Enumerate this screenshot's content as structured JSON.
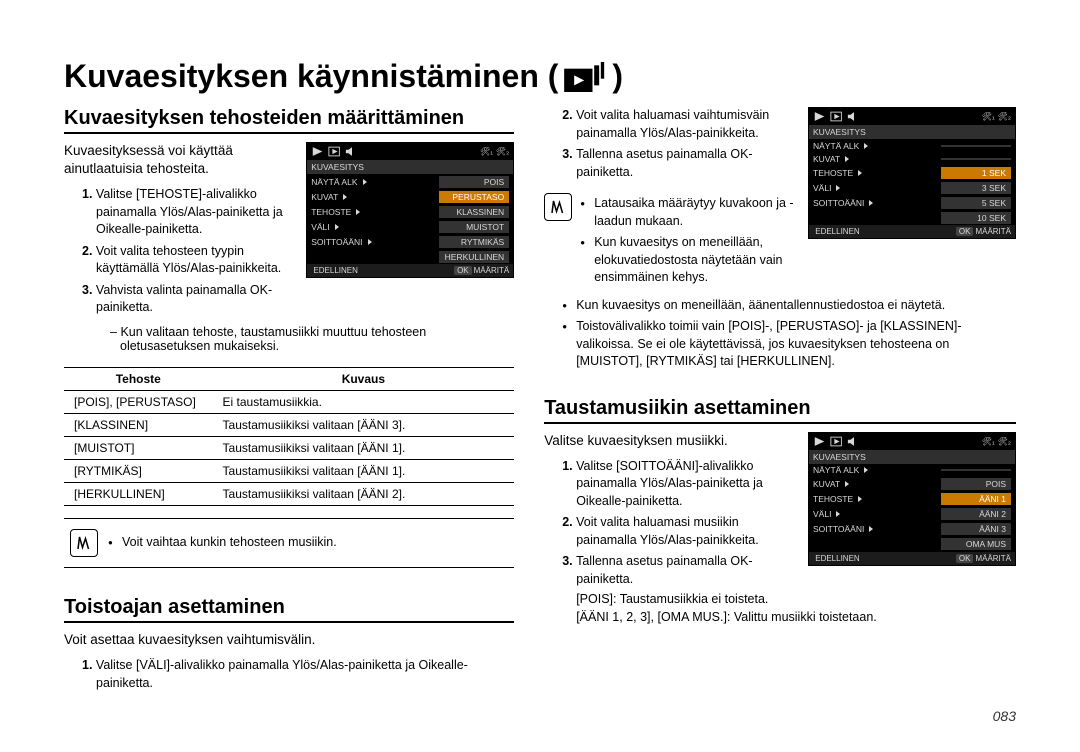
{
  "page_title": "Kuvaesityksen käynnistäminen (",
  "page_title_suffix": ")",
  "page_number": "083",
  "left": {
    "section1_title": "Kuvaesityksen tehosteiden määrittäminen",
    "section1_intro": "Kuvaesityksessä voi käyttää ainutlaatuisia tehosteita.",
    "section1_steps": [
      "Valitse [TEHOSTE]-alivalikko painamalla Ylös/Alas-painiketta ja Oikealle-painiketta.",
      "Voit valita tehosteen tyypin käyttämällä Ylös/Alas-painikkeita.",
      "Vahvista valinta painamalla OK-painiketta."
    ],
    "section1_dash": "Kun valitaan tehoste, taustamusiikki muuttuu tehosteen oletusasetuksen mukaiseksi.",
    "eff_table": {
      "head": [
        "Tehoste",
        "Kuvaus"
      ],
      "rows": [
        [
          "[POIS], [PERUSTASO]",
          "Ei taustamusiikkia."
        ],
        [
          "[KLASSINEN]",
          "Taustamusiikiksi valitaan [ÄÄNI 3]."
        ],
        [
          "[MUISTOT]",
          "Taustamusiikiksi valitaan [ÄÄNI 1]."
        ],
        [
          "[RYTMIKÄS]",
          "Taustamusiikiksi valitaan [ÄÄNI 1]."
        ],
        [
          "[HERKULLINEN]",
          "Taustamusiikiksi valitaan [ÄÄNI 2]."
        ]
      ]
    },
    "note1": "Voit vaihtaa kunkin tehosteen musiikin.",
    "section2_title": "Toistoajan asettaminen",
    "section2_intro": "Voit asettaa kuvaesityksen vaihtumisvälin.",
    "section2_steps": [
      "Valitse [VÄLI]-alivalikko painamalla Ylös/Alas-painiketta ja Oikealle-painiketta."
    ],
    "lcd1": {
      "header": "KUVAESITYS",
      "rows": [
        {
          "l": "NÄYTÄ ALK",
          "r": "POIS",
          "sel": false,
          "tri": true
        },
        {
          "l": "KUVAT",
          "r": "PERUSTASO",
          "sel": true,
          "tri": true
        },
        {
          "l": "TEHOSTE",
          "r": "KLASSINEN",
          "sel": false,
          "tri": true
        },
        {
          "l": "VÄLI",
          "r": "MUISTOT",
          "sel": false,
          "tri": true
        },
        {
          "l": "SOITTOÄÄNI",
          "r": "RYTMIKÄS",
          "sel": false,
          "tri": true
        },
        {
          "l": "",
          "r": "HERKULLINEN",
          "sel": false,
          "tri": false
        }
      ],
      "foot_left": "EDELLINEN",
      "foot_right": "MÄÄRITÄ"
    }
  },
  "right": {
    "top_steps_start": 2,
    "top_steps": [
      "Voit valita haluamasi vaihtumisväin painamalla Ylös/Alas-painikkeita.",
      "Tallenna asetus painamalla OK-painiketta."
    ],
    "top_bullets_a": [
      "Latausaika määräytyy kuvakoon ja -laadun mukaan.",
      "Kun kuvaesitys on meneillään, elokuvatiedostosta näytetään vain ensimmäinen kehys."
    ],
    "top_bullets_b": [
      "Kun kuvaesitys on meneillään, äänentallennustiedostoa ei näytetä.",
      "Toistovälivalikko toimii vain [POIS]-, [PERUSTASO]- ja [KLASSINEN]-valikoissa. Se ei ole käytettävissä, jos kuvaesityksen tehosteena on [MUISTOT], [RYTMIKÄS] tai [HERKULLINEN]."
    ],
    "lcd2": {
      "header": "KUVAESITYS",
      "rows": [
        {
          "l": "NÄYTÄ ALK",
          "r": "",
          "sel": false,
          "tri": true
        },
        {
          "l": "KUVAT",
          "r": "",
          "sel": false,
          "tri": true
        },
        {
          "l": "TEHOSTE",
          "r": "1 SEK",
          "sel": true,
          "tri": true
        },
        {
          "l": "VÄLI",
          "r": "3 SEK",
          "sel": false,
          "tri": true
        },
        {
          "l": "SOITTOÄÄNI",
          "r": "5 SEK",
          "sel": false,
          "tri": true
        },
        {
          "l": "",
          "r": "10 SEK",
          "sel": false,
          "tri": false
        }
      ],
      "foot_left": "EDELLINEN",
      "foot_right": "MÄÄRITÄ"
    },
    "section3_title": "Taustamusiikin asettaminen",
    "section3_intro": "Valitse kuvaesityksen musiikki.",
    "section3_steps": [
      "Valitse [SOITTOÄÄNI]-alivalikko painamalla Ylös/Alas-painiketta ja Oikealle-painiketta.",
      "Voit valita haluamasi musiikin painamalla Ylös/Alas-painikkeita.",
      "Tallenna asetus painamalla OK-painiketta."
    ],
    "section3_after1": "[POIS]: Taustamusiikkia ei toisteta.",
    "section3_after2": "[ÄÄNI 1, 2, 3], [OMA MUS.]: Valittu musiikki toistetaan.",
    "lcd3": {
      "header": "KUVAESITYS",
      "rows": [
        {
          "l": "NÄYTÄ ALK",
          "r": "",
          "sel": false,
          "tri": true
        },
        {
          "l": "KUVAT",
          "r": "POIS",
          "sel": false,
          "tri": true
        },
        {
          "l": "TEHOSTE",
          "r": "ÄÄNI 1",
          "sel": true,
          "tri": true
        },
        {
          "l": "VÄLI",
          "r": "ÄÄNI 2",
          "sel": false,
          "tri": true
        },
        {
          "l": "SOITTOÄÄNI",
          "r": "ÄÄNI 3",
          "sel": false,
          "tri": true
        },
        {
          "l": "",
          "r": "OMA MUS",
          "sel": false,
          "tri": false
        }
      ],
      "foot_left": "EDELLINEN",
      "foot_right": "MÄÄRITÄ"
    }
  }
}
